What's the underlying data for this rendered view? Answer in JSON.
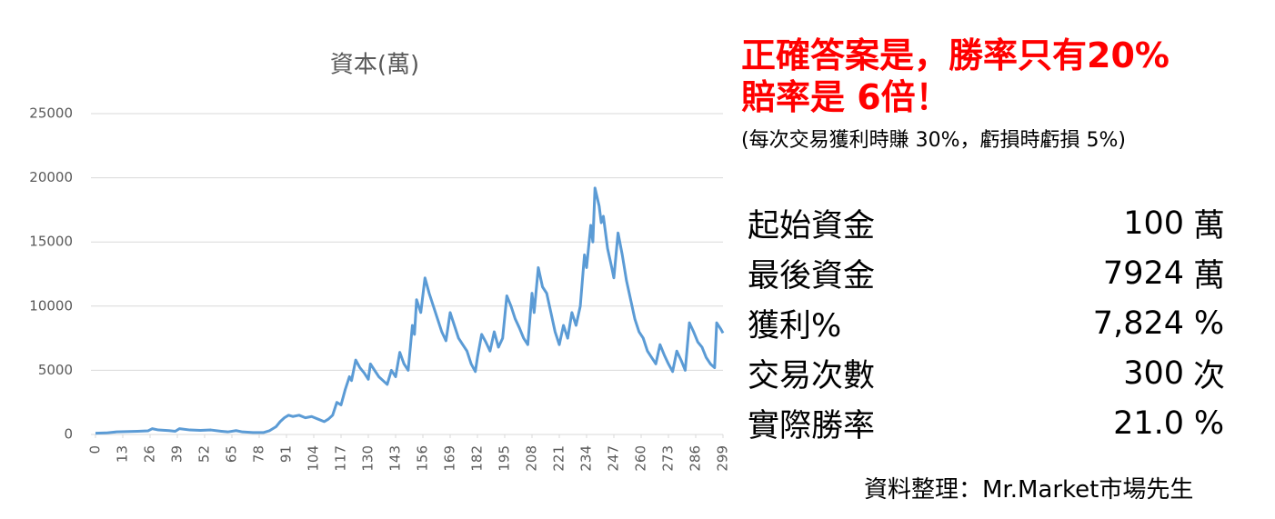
{
  "chart_data": {
    "type": "line",
    "title": "資本(萬)",
    "x": [
      0,
      5,
      10,
      20,
      25,
      27,
      30,
      35,
      38,
      40,
      45,
      50,
      55,
      60,
      63,
      67,
      70,
      75,
      80,
      83,
      86,
      88,
      90,
      92,
      94,
      97,
      100,
      103,
      106,
      109,
      111,
      113,
      115,
      117,
      119,
      121,
      122,
      124,
      126,
      128,
      130,
      131,
      133,
      135,
      137,
      139,
      141,
      143,
      145,
      147,
      149,
      151,
      152,
      153,
      155,
      157,
      159,
      161,
      163,
      165,
      167,
      169,
      171,
      173,
      175,
      177,
      179,
      181,
      182,
      184,
      186,
      188,
      190,
      192,
      194,
      196,
      198,
      200,
      202,
      204,
      206,
      208,
      209,
      211,
      213,
      215,
      217,
      219,
      221,
      223,
      225,
      227,
      229,
      231,
      233,
      234,
      236,
      237,
      238,
      240,
      241,
      242,
      244,
      246,
      247,
      249,
      251,
      253,
      255,
      257,
      259,
      261,
      263,
      265,
      267,
      269,
      271,
      273,
      275,
      277,
      279,
      281,
      283,
      285,
      287,
      289,
      291,
      293,
      295,
      296,
      298,
      299
    ],
    "series": [
      {
        "name": "資本(萬)",
        "color": "#5b9bd5",
        "values": [
          100,
          120,
          200,
          250,
          280,
          450,
          350,
          300,
          250,
          450,
          350,
          320,
          350,
          250,
          200,
          300,
          200,
          150,
          150,
          300,
          600,
          1000,
          1300,
          1500,
          1400,
          1500,
          1300,
          1400,
          1200,
          1000,
          1200,
          1500,
          2500,
          2300,
          3500,
          4500,
          4200,
          5800,
          5200,
          4800,
          4300,
          5500,
          5000,
          4500,
          4200,
          3900,
          5000,
          4500,
          6400,
          5500,
          5000,
          8500,
          7800,
          10500,
          9500,
          12200,
          11000,
          10000,
          9000,
          8000,
          7300,
          9500,
          8500,
          7500,
          7000,
          6500,
          5500,
          4900,
          6000,
          7800,
          7200,
          6500,
          8000,
          6800,
          7500,
          10800,
          10000,
          9000,
          8300,
          7500,
          7000,
          11000,
          9500,
          13000,
          11500,
          11000,
          9500,
          8000,
          7000,
          8500,
          7500,
          9500,
          8500,
          10000,
          14000,
          13000,
          16300,
          15000,
          19200,
          17800,
          16500,
          17000,
          14500,
          13000,
          12200,
          15700,
          14000,
          12000,
          10500,
          9000,
          8000,
          7500,
          6500,
          6000,
          5500,
          7000,
          6200,
          5500,
          4900,
          6500,
          5800,
          5000,
          8700,
          8000,
          7200,
          6800,
          6000,
          5500,
          5200,
          8700,
          8200,
          7900
        ]
      }
    ],
    "xlim": [
      0,
      299
    ],
    "xticks": [
      0,
      13,
      26,
      39,
      52,
      65,
      78,
      91,
      104,
      117,
      130,
      143,
      156,
      169,
      182,
      195,
      208,
      221,
      234,
      247,
      260,
      273,
      286,
      299
    ],
    "ylim": [
      0,
      25000
    ],
    "yticks": [
      0,
      5000,
      10000,
      15000,
      20000,
      25000
    ],
    "grid": true
  },
  "panel": {
    "headline": [
      "正確答案是，勝率只有20%",
      "賠率是 6倍！"
    ],
    "note": "(每次交易獲利時賺 30%，虧損時虧損 5%)",
    "rows": [
      [
        "起始資金",
        "100",
        "萬"
      ],
      [
        "最後資金",
        "7924",
        "萬"
      ],
      [
        "獲利%",
        "7,824",
        "%"
      ],
      [
        "交易次數",
        "300",
        "次"
      ],
      [
        "實際勝率",
        "21.0",
        "%"
      ]
    ],
    "source": "資料整理：Mr.Market市場先生"
  }
}
